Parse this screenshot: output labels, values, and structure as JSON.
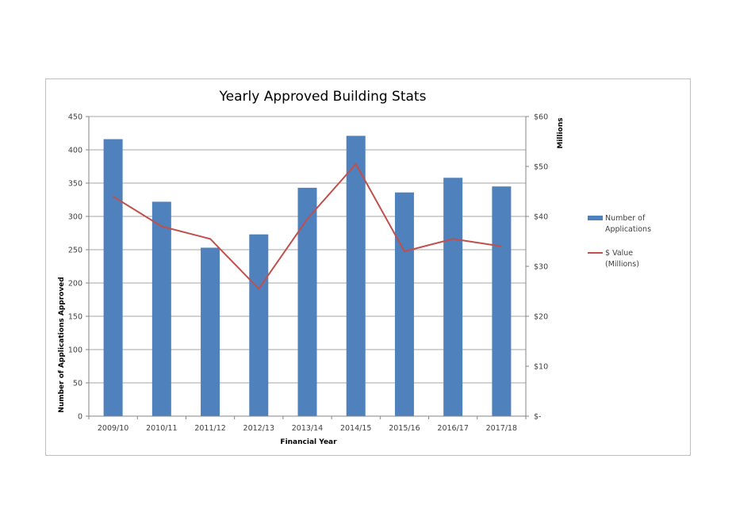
{
  "chart_data": {
    "type": "bar",
    "title": "Yearly Approved Building Stats",
    "xlabel": "Financial Year",
    "ylabel": "Number of Applications Approved",
    "y2label": "Millions",
    "categories": [
      "2009/10",
      "2010/11",
      "2011/12",
      "2012/13",
      "2013/14",
      "2014/15",
      "2015/16",
      "2016/17",
      "2017/18"
    ],
    "ylim": [
      0,
      450
    ],
    "yticks": [
      0,
      50,
      100,
      150,
      200,
      250,
      300,
      350,
      400,
      450
    ],
    "ytick_labels": [
      "0",
      "50",
      "100",
      "150",
      "200",
      "250",
      "300",
      "350",
      "400",
      "450"
    ],
    "y2lim": [
      0,
      60
    ],
    "y2ticks": [
      0,
      10,
      20,
      30,
      40,
      50,
      60
    ],
    "y2tick_labels": [
      "$-",
      "$10",
      "$20",
      "$30",
      "$40",
      "$50",
      "$60"
    ],
    "grid": true,
    "legend_position": "right",
    "series": [
      {
        "name": "Number of Applications",
        "type": "bar",
        "axis": "left",
        "color": "#4f81bd",
        "values": [
          416,
          322,
          253,
          273,
          343,
          421,
          336,
          358,
          345
        ]
      },
      {
        "name": "$ Value (Millions)",
        "type": "line",
        "axis": "right",
        "color": "#c0504d",
        "values": [
          44.0,
          38.0,
          35.5,
          25.5,
          39.5,
          50.5,
          33.0,
          35.5,
          34.0
        ]
      }
    ],
    "legend": [
      {
        "lines": [
          "Number of",
          "Applications"
        ]
      },
      {
        "lines": [
          "$ Value",
          "(Millions)"
        ]
      }
    ]
  }
}
